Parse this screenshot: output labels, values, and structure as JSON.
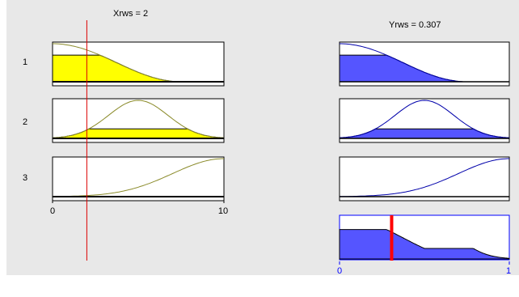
{
  "input_header": {
    "name": "Xrws",
    "value": "2",
    "text": "Xrws = 2"
  },
  "output_header": {
    "name": "Yrws",
    "value": "0.307",
    "text": "Yrws = 0.307"
  },
  "rules": [
    {
      "number": "1",
      "input_mf": "decreasing",
      "input_firing": 0.7,
      "output_mf": "decreasing"
    },
    {
      "number": "2",
      "input_mf": "bell",
      "input_firing": 0.25,
      "output_mf": "bell"
    },
    {
      "number": "3",
      "input_mf": "increasing",
      "input_firing": 0.0,
      "output_mf": "increasing"
    }
  ],
  "input_axis": {
    "min": "0",
    "max": "10",
    "color": "#000000"
  },
  "output_axis": {
    "min": "0",
    "max": "1",
    "color": "#0000ff"
  },
  "input_value_fraction": 0.2,
  "output_value_fraction": 0.307,
  "colors": {
    "background": "#e8e8e8",
    "input_fill": "#ffff00",
    "input_curve": "#8b8b2b",
    "output_fill": "#5555ff",
    "output_curve": "#0000aa",
    "input_line": "#dd0000",
    "output_line": "#ff0000",
    "aggregate_border": "#0000ff"
  }
}
